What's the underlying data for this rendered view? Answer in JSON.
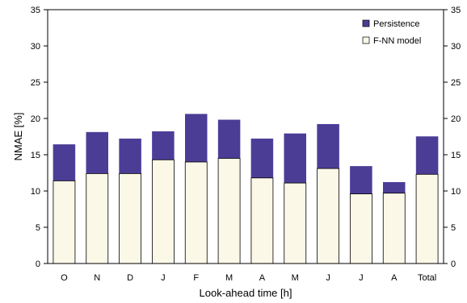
{
  "chart_data": {
    "type": "bar",
    "stacked": true,
    "categories": [
      "O",
      "N",
      "D",
      "J",
      "F",
      "M",
      "A",
      "M",
      "J",
      "J",
      "A",
      "Total"
    ],
    "series": [
      {
        "name": "F-NN model",
        "color": "#fcf8e8",
        "values": [
          11.4,
          12.4,
          12.4,
          14.3,
          14.0,
          14.5,
          11.8,
          11.1,
          13.1,
          9.6,
          9.7,
          12.3
        ]
      },
      {
        "name": "Persistence",
        "color": "#4b3d96",
        "values": [
          16.4,
          18.1,
          17.2,
          18.2,
          20.6,
          19.8,
          17.2,
          17.9,
          19.2,
          13.4,
          11.2,
          17.5
        ]
      }
    ],
    "title": "",
    "xlabel": "Look-ahead time [h]",
    "ylabel": "NMAE [%]",
    "ylim": [
      0,
      35
    ],
    "yticks": [
      0,
      5,
      10,
      15,
      20,
      25,
      30,
      35
    ],
    "secondary_y_axis": true,
    "legend_position": "top-right",
    "grid": false
  }
}
